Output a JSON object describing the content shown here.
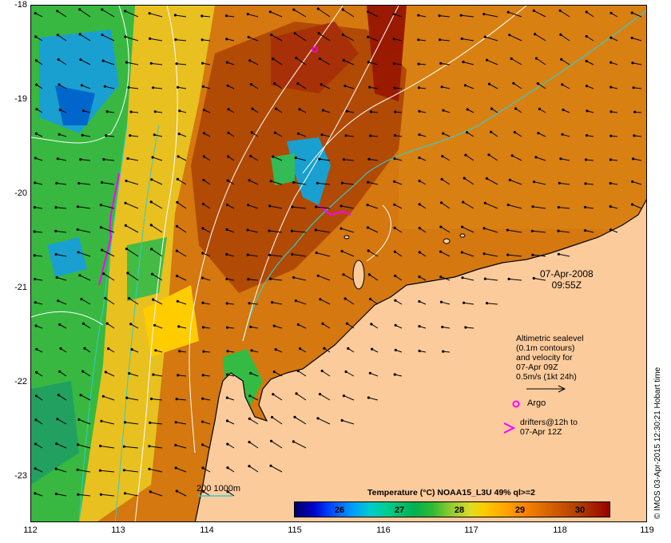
{
  "map": {
    "x_ticks": [
      "112",
      "113",
      "114",
      "115",
      "116",
      "117",
      "118",
      "119"
    ],
    "y_ticks": [
      "-18",
      "-19",
      "-20",
      "-21",
      "-22",
      "-23"
    ],
    "datetime": {
      "date": "07-Apr-2008",
      "time": "09:55Z"
    },
    "velocity_legend": {
      "line1": "Altimetric sealevel",
      "line2": "(0.1m contours)",
      "line3": "and velocity for",
      "line4": "07-Apr 09Z",
      "line5": "0.5m/s (1kt 24h)"
    },
    "argo_label": "Argo",
    "drifter_label": {
      "line1": "drifters@12h to",
      "line2": "07-Apr 12Z"
    },
    "depth_contour_label": "200  1000m",
    "colorbar": {
      "title": "Temperature (°C) NOAA15_L3U 49% ql>=2",
      "ticks": [
        "26",
        "27",
        "28",
        "29",
        "30"
      ]
    },
    "credit": "© IMOS 03-Apr-2015 12:30:21 Hobart time",
    "colors": {
      "land": "#fccb9c",
      "warm": "#d97a10",
      "hot": "#9a1a00",
      "cool": "#00aa55",
      "argo": "#ff00ff",
      "isobath": "#33cccc"
    }
  }
}
